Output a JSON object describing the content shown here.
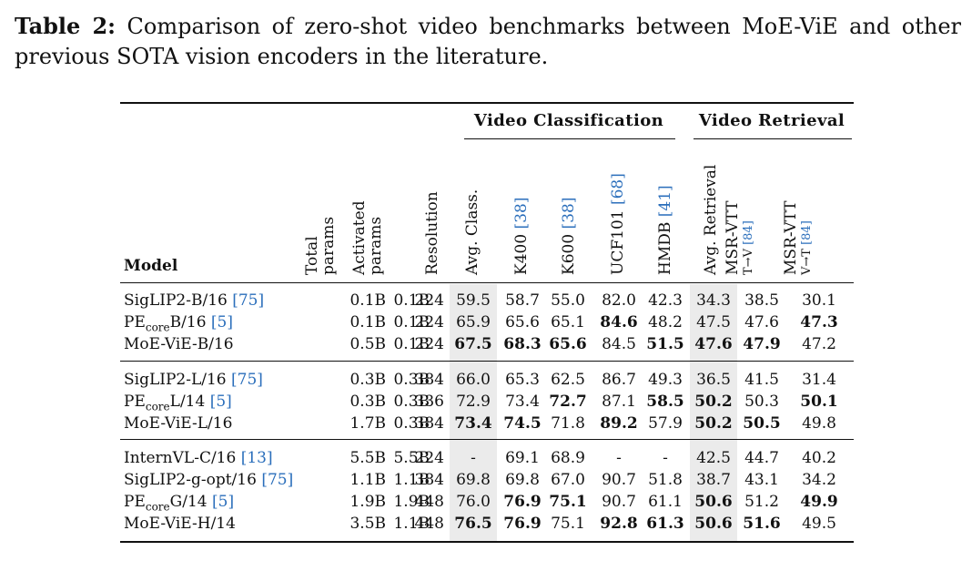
{
  "caption": {
    "label": "Table 2:",
    "text": "Comparison of zero-shot video benchmarks between MoE-ViE and other previous SOTA vision encoders in the literature."
  },
  "groups": {
    "video_classification": "Video Classification",
    "video_retrieval": "Video Retrieval"
  },
  "columns": {
    "model": "Model",
    "total_params": [
      "Total",
      "params"
    ],
    "activated_params": [
      "Activated",
      "params"
    ],
    "resolution": "Resolution",
    "avg_class": "Avg. Class.",
    "k400": {
      "name": "K400",
      "cite": "[38]"
    },
    "k600": {
      "name": "K600",
      "cite": "[38]"
    },
    "ucf101": {
      "name": "UCF101",
      "cite": "[68]"
    },
    "hmdb": {
      "name": "HMDB",
      "cite": "[41]"
    },
    "avg_retrieval": "Avg. Retrieval",
    "msrvtt_tv": {
      "name": "MSR-VTT",
      "sub": "T→V",
      "cite": "[84]"
    },
    "msrvtt_vt": {
      "name": "MSR-VTT",
      "sub": "V→T",
      "cite": "[84]"
    }
  },
  "rows": [
    {
      "model": "SigLIP2-B/16",
      "sub": "",
      "cite": "[75]",
      "vals": [
        "0.1B",
        "0.1B",
        "224",
        "59.5",
        "58.7",
        "55.0",
        "82.0",
        "42.3",
        "34.3",
        "38.5",
        "30.1"
      ],
      "bold": []
    },
    {
      "model": "PE",
      "sub": "core",
      "model_tail": "B/16",
      "cite": "[5]",
      "vals": [
        "0.1B",
        "0.1B",
        "224",
        "65.9",
        "65.6",
        "65.1",
        "84.6",
        "48.2",
        "47.5",
        "47.6",
        "47.3"
      ],
      "bold": [
        6,
        10
      ]
    },
    {
      "model": "MoE-ViE-B/16",
      "sub": "",
      "cite": "",
      "vals": [
        "0.5B",
        "0.1B",
        "224",
        "67.5",
        "68.3",
        "65.6",
        "84.5",
        "51.5",
        "47.6",
        "47.9",
        "47.2"
      ],
      "bold": [
        3,
        4,
        5,
        7,
        8,
        9
      ]
    },
    {
      "model": "SigLIP2-L/16",
      "sub": "",
      "cite": "[75]",
      "vals": [
        "0.3B",
        "0.3B",
        "384",
        "66.0",
        "65.3",
        "62.5",
        "86.7",
        "49.3",
        "36.5",
        "41.5",
        "31.4"
      ],
      "bold": []
    },
    {
      "model": "PE",
      "sub": "core",
      "model_tail": "L/14",
      "cite": "[5]",
      "vals": [
        "0.3B",
        "0.3B",
        "336",
        "72.9",
        "73.4",
        "72.7",
        "87.1",
        "58.5",
        "50.2",
        "50.3",
        "50.1"
      ],
      "bold": [
        5,
        7,
        8,
        10
      ]
    },
    {
      "model": "MoE-ViE-L/16",
      "sub": "",
      "cite": "",
      "vals": [
        "1.7B",
        "0.3B",
        "384",
        "73.4",
        "74.5",
        "71.8",
        "89.2",
        "57.9",
        "50.2",
        "50.5",
        "49.8"
      ],
      "bold": [
        3,
        4,
        6,
        8,
        9
      ]
    },
    {
      "model": "InternVL-C/16",
      "sub": "",
      "cite": "[13]",
      "vals": [
        "5.5B",
        "5.5B",
        "224",
        "-",
        "69.1",
        "68.9",
        "-",
        "-",
        "42.5",
        "44.7",
        "40.2"
      ],
      "bold": []
    },
    {
      "model": "SigLIP2-g-opt/16",
      "sub": "",
      "cite": "[75]",
      "vals": [
        "1.1B",
        "1.1B",
        "384",
        "69.8",
        "69.8",
        "67.0",
        "90.7",
        "51.8",
        "38.7",
        "43.1",
        "34.2"
      ],
      "bold": []
    },
    {
      "model": "PE",
      "sub": "core",
      "model_tail": "G/14",
      "cite": "[5]",
      "vals": [
        "1.9B",
        "1.9B",
        "448",
        "76.0",
        "76.9",
        "75.1",
        "90.7",
        "61.1",
        "50.6",
        "51.2",
        "49.9"
      ],
      "bold": [
        4,
        5,
        8,
        10
      ]
    },
    {
      "model": "MoE-ViE-H/14",
      "sub": "",
      "cite": "",
      "vals": [
        "3.5B",
        "1.1B",
        "448",
        "76.5",
        "76.9",
        "75.1",
        "92.8",
        "61.3",
        "50.6",
        "51.6",
        "49.5"
      ],
      "bold": [
        3,
        4,
        6,
        7,
        8,
        9
      ]
    }
  ]
}
